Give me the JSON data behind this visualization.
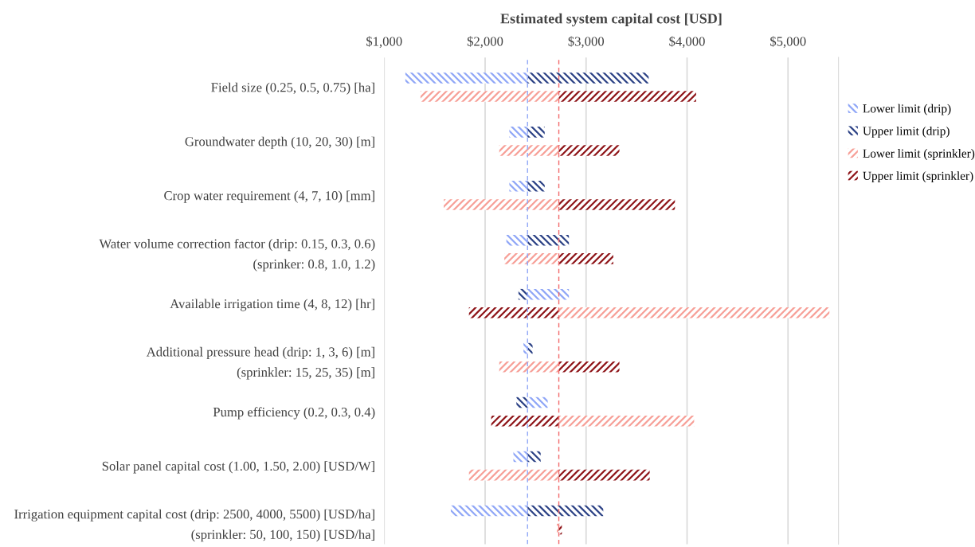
{
  "chart_data": {
    "type": "bar",
    "orientation": "horizontal",
    "xlabel": "Estimated system capital cost [USD]",
    "categories": [
      "Field size (0.25, 0.5, 0.75) [ha]",
      "Groundwater depth (10, 20, 30) [m]",
      "Crop water requirement (4, 7, 10) [mm]",
      "Water volume correction factor (drip: 0.15, 0.3, 0.6)\n(sprinker: 0.8, 1.0, 1.2)",
      "Available irrigation time (4, 8, 12) [hr]",
      "Additional pressure head (drip: 1, 3, 6) [m]\n(sprinkler: 15, 25, 35) [m]",
      "Pump efficiency (0.2, 0.3, 0.4)",
      "Solar panel capital cost (1.00, 1.50, 2.00) [USD/W]",
      "Irrigation equipment capital cost (drip: 2500, 4000, 5500) [USD/ha]\n(sprinkler: 50, 100, 150) [USD/ha]"
    ],
    "series": [
      {
        "name": "Lower limit (drip)",
        "color": "#8fa6f7",
        "base": [
          2420,
          2420,
          2420,
          2420,
          2420,
          2420,
          2420,
          2420,
          2420
        ],
        "values": [
          -1210,
          -180,
          -180,
          -210,
          410,
          -40,
          200,
          -140,
          -760
        ]
      },
      {
        "name": "Upper limit (drip)",
        "color": "#2b4185",
        "base": [
          2420,
          2420,
          2420,
          2420,
          2420,
          2420,
          2420,
          2420,
          2420
        ],
        "values": [
          1200,
          170,
          170,
          410,
          -90,
          50,
          -110,
          130,
          750
        ]
      },
      {
        "name": "Lower limit (sprinkler)",
        "color": "#f79f97",
        "base": [
          2730,
          2730,
          2730,
          2730,
          2730,
          2730,
          2730,
          2730,
          2730
        ],
        "values": [
          -1370,
          -590,
          -1140,
          -540,
          2680,
          -590,
          1340,
          -890,
          -20
        ]
      },
      {
        "name": "Upper limit (sprinkler)",
        "color": "#8e1418",
        "base": [
          2730,
          2730,
          2730,
          2730,
          2730,
          2730,
          2730,
          2730,
          2730
        ],
        "values": [
          1360,
          600,
          1150,
          540,
          -890,
          600,
          -670,
          900,
          30
        ]
      }
    ],
    "xlim": [
      1000,
      5500
    ],
    "xticks": [
      {
        "value": 1000,
        "label": "$1,000"
      },
      {
        "value": 2000,
        "label": "$2,000"
      },
      {
        "value": 3000,
        "label": "$3,000"
      },
      {
        "value": 4000,
        "label": "$4,000"
      },
      {
        "value": 5000,
        "label": "$5,000"
      }
    ],
    "ref_lines": [
      {
        "axis": "x",
        "value": 2420,
        "color": "#8fa6f7",
        "line_style": "dashed"
      },
      {
        "axis": "x",
        "value": 2730,
        "color": "#f2686a",
        "line_style": "dashed"
      }
    ],
    "grid": "x",
    "legend": "top right"
  }
}
